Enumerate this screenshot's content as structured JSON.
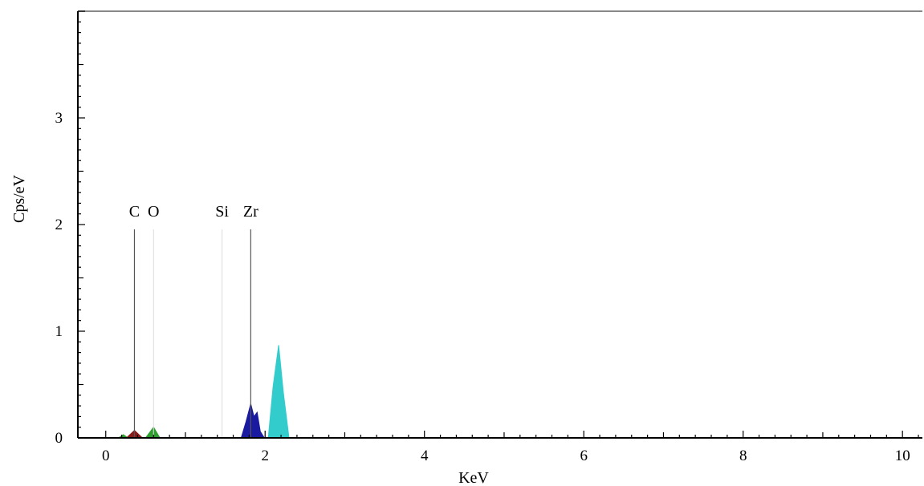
{
  "chart_data": {
    "type": "area",
    "title": "",
    "xlabel": "KeV",
    "ylabel": "Cps/eV",
    "xlim": [
      -0.35,
      10.25
    ],
    "ylim": [
      0,
      4.0
    ],
    "x_ticks": [
      0,
      2,
      4,
      6,
      8,
      10
    ],
    "y_ticks": [
      0,
      1,
      2,
      3
    ],
    "grid": false,
    "element_markers": [
      {
        "label": "C",
        "x": 0.36,
        "line": true
      },
      {
        "label": "O",
        "x": 0.6,
        "line": false
      },
      {
        "label": "Si",
        "x": 1.46,
        "line": false
      },
      {
        "label": "Zr",
        "x": 1.82,
        "line": true
      }
    ],
    "series": [
      {
        "name": "C",
        "color": "#8b1a1a",
        "x": [
          0.26,
          0.36,
          0.46
        ],
        "y": [
          0,
          0.07,
          0
        ]
      },
      {
        "name": "O",
        "color": "#2e9e2e",
        "x": [
          0.16,
          0.22,
          0.28,
          0.5,
          0.6,
          0.68
        ],
        "y": [
          0,
          0.03,
          0,
          0,
          0.1,
          0
        ]
      },
      {
        "name": "Si",
        "color": "#1a1aa0",
        "x": [
          1.7,
          1.76,
          1.82,
          1.86,
          1.9,
          1.94,
          1.99
        ],
        "y": [
          0,
          0.15,
          0.32,
          0.2,
          0.24,
          0.06,
          0
        ]
      },
      {
        "name": "Zr",
        "color": "#33cccc",
        "x": [
          2.04,
          2.1,
          2.17,
          2.23,
          2.3
        ],
        "y": [
          0,
          0.48,
          0.87,
          0.42,
          0
        ]
      }
    ]
  }
}
